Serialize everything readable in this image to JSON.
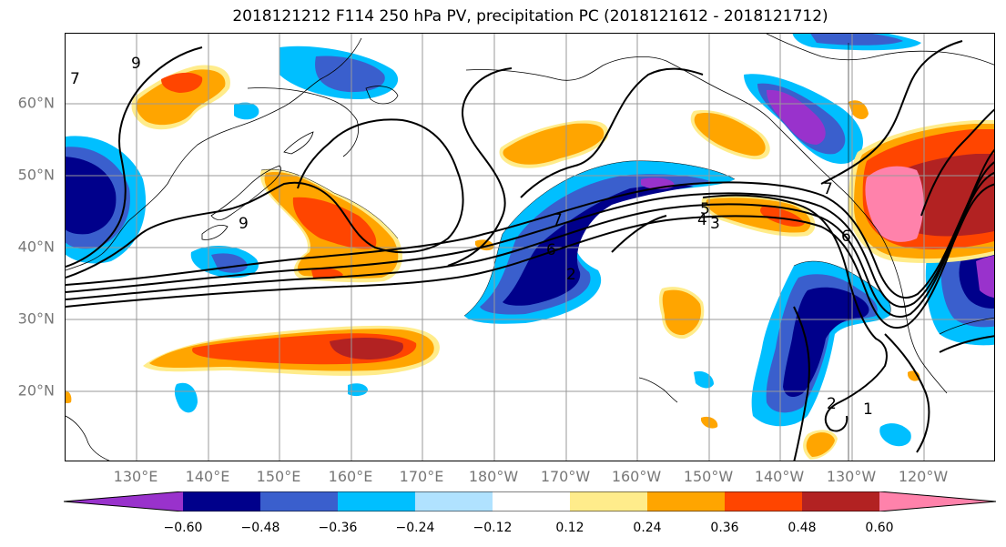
{
  "title": "2018121212 F114 250 hPa PV, precipitation PC (2018121612 - 2018121712)",
  "lat_labels": [
    "60°N",
    "50°N",
    "40°N",
    "30°N",
    "20°N"
  ],
  "lon_labels": [
    "130°E",
    "140°E",
    "150°E",
    "160°E",
    "170°E",
    "180°W",
    "170°W",
    "160°W",
    "150°W",
    "140°W",
    "130°W",
    "120°W"
  ],
  "contour_labels": [
    "9",
    "7",
    "9",
    "7",
    "6",
    "2",
    "5",
    "4",
    "3",
    "6",
    "7",
    "2",
    "1"
  ],
  "colorbar": {
    "colors": [
      "#9932CC",
      "#00008B",
      "#3A5FCD",
      "#00BFFF",
      "#B0E2FF",
      "#FFFFFF",
      "#FFEC8B",
      "#FFA500",
      "#FF4500",
      "#B22222",
      "#FF82AB"
    ],
    "tick_labels": [
      "−0.60",
      "−0.48",
      "−0.36",
      "−0.24",
      "−0.12",
      "0.12",
      "0.24",
      "0.36",
      "0.48",
      "0.60"
    ]
  }
}
